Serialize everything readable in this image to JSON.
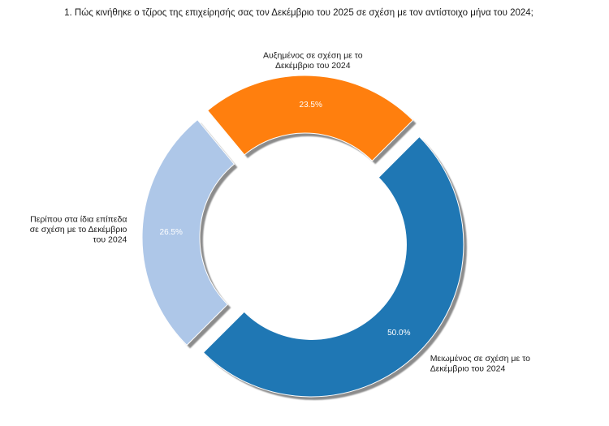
{
  "chart_data": {
    "type": "pie",
    "title": "1. Πώς κινήθηκε ο τζίρος της επιχείρησής σας τον Δεκέμβριο του 2025 σε σχέση με τον αντίστοιχο μήνα του 2024;",
    "donut": true,
    "exploded": true,
    "shadow": true,
    "legend": "none",
    "slices": [
      {
        "label": "Αυξημένος σε σχέση με το Δεκέμβριο του 2024",
        "label_lines": [
          "Αυξημένος σε σχέση με το",
          "Δεκέμβριο του 2024"
        ],
        "value": 23.5,
        "pct_text": "23.5%",
        "color": "#ff7f0e"
      },
      {
        "label": "Περίπου στα ίδια επίπεδα σε σχέση με το Δεκέμβριο του 2024",
        "label_lines": [
          "Περίπου στα ίδια επίπεδα",
          "σε σχέση με το Δεκέμβριο",
          "του 2024"
        ],
        "value": 26.5,
        "pct_text": "26.5%",
        "color": "#aec7e8"
      },
      {
        "label": "Μειωμένος σε σχέση με το Δεκέμβριο του 2024",
        "label_lines": [
          "Μειωμένος σε σχέση με το",
          "Δεκέμβριο του 2024"
        ],
        "value": 50.0,
        "pct_text": "50.0%",
        "color": "#1f77b4"
      }
    ]
  }
}
